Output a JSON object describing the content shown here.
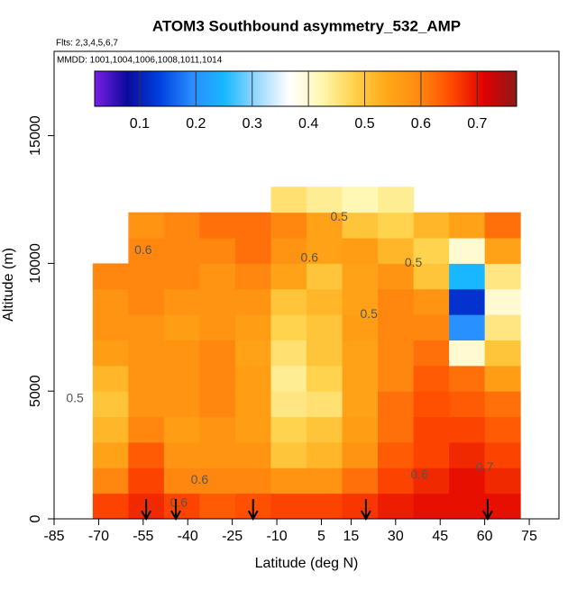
{
  "chart_data": {
    "type": "heatmap",
    "title": "ATOM3 Southbound asymmetry_532_AMP",
    "subtitle": "Flts: 2,3,4,5,6,7",
    "note": "MMDD: 1001,1004,1006,1008,1011,1014",
    "x_label": "Latitude (deg N)",
    "y_label": "Altitude (m)",
    "xlim": [
      -85,
      85
    ],
    "ylim": [
      0,
      18300
    ],
    "xticks": [
      -85,
      -70,
      -55,
      -40,
      -25,
      -10,
      5,
      15,
      30,
      45,
      60,
      75
    ],
    "yticks": [
      0,
      5000,
      10000,
      15000
    ],
    "x_edges": [
      -72,
      -60,
      -48,
      -36,
      -24,
      -12,
      0,
      12,
      24,
      36,
      48,
      60,
      72
    ],
    "y_edges": [
      0,
      1000,
      2000,
      3000,
      4000,
      5000,
      6000,
      7000,
      8000,
      9000,
      10000,
      11000,
      12000,
      13000
    ],
    "z": [
      [
        0.66,
        0.68,
        0.66,
        0.64,
        0.65,
        0.66,
        0.66,
        0.67,
        0.69,
        0.7,
        0.7,
        0.7
      ],
      [
        0.6,
        0.66,
        0.6,
        0.6,
        0.6,
        0.58,
        0.58,
        0.62,
        0.66,
        0.68,
        0.7,
        0.68
      ],
      [
        0.55,
        0.64,
        0.58,
        0.58,
        0.58,
        0.5,
        0.52,
        0.58,
        0.64,
        0.66,
        0.68,
        0.66
      ],
      [
        0.52,
        0.6,
        0.56,
        0.58,
        0.56,
        0.48,
        0.5,
        0.56,
        0.62,
        0.66,
        0.66,
        0.64
      ],
      [
        0.5,
        0.58,
        0.58,
        0.6,
        0.56,
        0.45,
        0.46,
        0.55,
        0.62,
        0.65,
        0.64,
        0.62
      ],
      [
        0.52,
        0.58,
        0.58,
        0.6,
        0.56,
        0.44,
        0.48,
        0.55,
        0.6,
        0.64,
        0.62,
        0.56
      ],
      [
        0.56,
        0.58,
        0.58,
        0.6,
        0.55,
        0.46,
        0.5,
        0.55,
        0.6,
        0.62,
        0.4,
        0.5
      ],
      [
        0.58,
        0.58,
        0.56,
        0.58,
        0.56,
        0.48,
        0.5,
        0.56,
        0.6,
        0.6,
        0.2,
        0.45
      ],
      [
        0.58,
        0.6,
        0.58,
        0.58,
        0.58,
        0.5,
        0.52,
        0.55,
        0.6,
        0.58,
        0.12,
        0.4
      ],
      [
        0.6,
        0.6,
        0.6,
        0.58,
        0.6,
        0.55,
        0.5,
        0.55,
        0.58,
        0.5,
        0.25,
        0.45
      ],
      [
        null,
        0.6,
        0.6,
        0.6,
        0.62,
        0.58,
        0.55,
        0.56,
        0.52,
        0.48,
        0.4,
        0.55
      ],
      [
        null,
        0.58,
        0.6,
        0.62,
        0.62,
        0.6,
        0.55,
        0.5,
        0.48,
        0.52,
        0.55,
        0.62
      ],
      [
        null,
        null,
        null,
        null,
        null,
        0.46,
        0.44,
        0.42,
        0.44,
        null,
        null,
        null
      ]
    ],
    "clim": [
      0.02,
      0.77
    ],
    "cticks": [
      0.1,
      0.2,
      0.3,
      0.4,
      0.5,
      0.6,
      0.7
    ],
    "colors": [
      "#7a1fe8",
      "#0a0a9c",
      "#0040e0",
      "#2a8cff",
      "#18b8ff",
      "#9ad8ff",
      "#ffffff",
      "#fff7b0",
      "#ffd24a",
      "#ffa818",
      "#ff8a10",
      "#ff4a00",
      "#e00000",
      "#8b1a1a"
    ],
    "contour_labels": [
      {
        "label": "0.5",
        "x": -78,
        "y": 4700
      },
      {
        "label": "0.6",
        "x": -55,
        "y": 10500
      },
      {
        "label": "0.5",
        "x": 11,
        "y": 11800
      },
      {
        "label": "0.6",
        "x": 1,
        "y": 10200
      },
      {
        "label": "0.5",
        "x": 36,
        "y": 10000
      },
      {
        "label": "0.5",
        "x": 21,
        "y": 8000
      },
      {
        "label": "0.6",
        "x": 38,
        "y": 1700
      },
      {
        "label": "0.6",
        "x": -36,
        "y": 1500
      },
      {
        "label": "0.6",
        "x": -43,
        "y": 600
      },
      {
        "label": "0.7",
        "x": 60,
        "y": 2000
      }
    ],
    "arrows_x": [
      -54,
      -44,
      -18,
      20,
      61
    ],
    "arrow_color": "#000000"
  }
}
